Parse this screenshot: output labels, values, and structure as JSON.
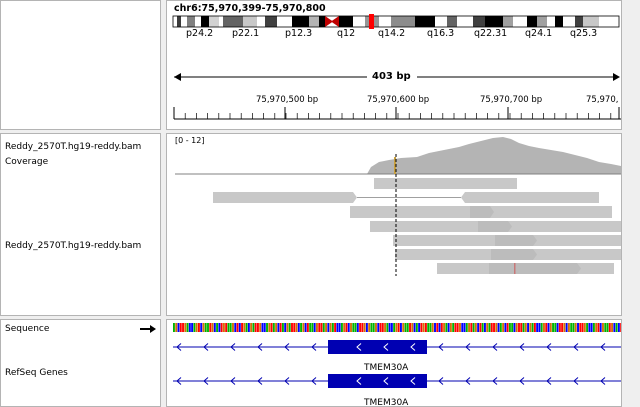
{
  "header": {
    "locus": "chr6:75,970,399-75,970,800",
    "bands": [
      "p24.2",
      "p22.1",
      "p12.3",
      "q12",
      "q14.2",
      "q16.3",
      "q22.31",
      "q24.1",
      "q25.3"
    ],
    "span_label": "403 bp",
    "ruler_ticks": [
      "75,970,500 bp",
      "75,970,600 bp",
      "75,970,700 bp",
      "75,970,"
    ]
  },
  "tracks": {
    "coverage_name": "Reddy_2570T.hg19-reddy.bam Coverage",
    "coverage_range": "[0 - 12]",
    "alignment_name": "Reddy_2570T.hg19-reddy.bam",
    "sequence_name": "Sequence",
    "refseq_name": "RefSeq Genes",
    "gene_name_1": "TMEM30A",
    "gene_name_2": "TMEM30A"
  },
  "colors": {
    "read": "#c8c8c8",
    "coverage": "#b4b4b4",
    "gene": "#0000b2",
    "cytoband_centromere": "#c00000",
    "current_region": "#ff0000"
  }
}
